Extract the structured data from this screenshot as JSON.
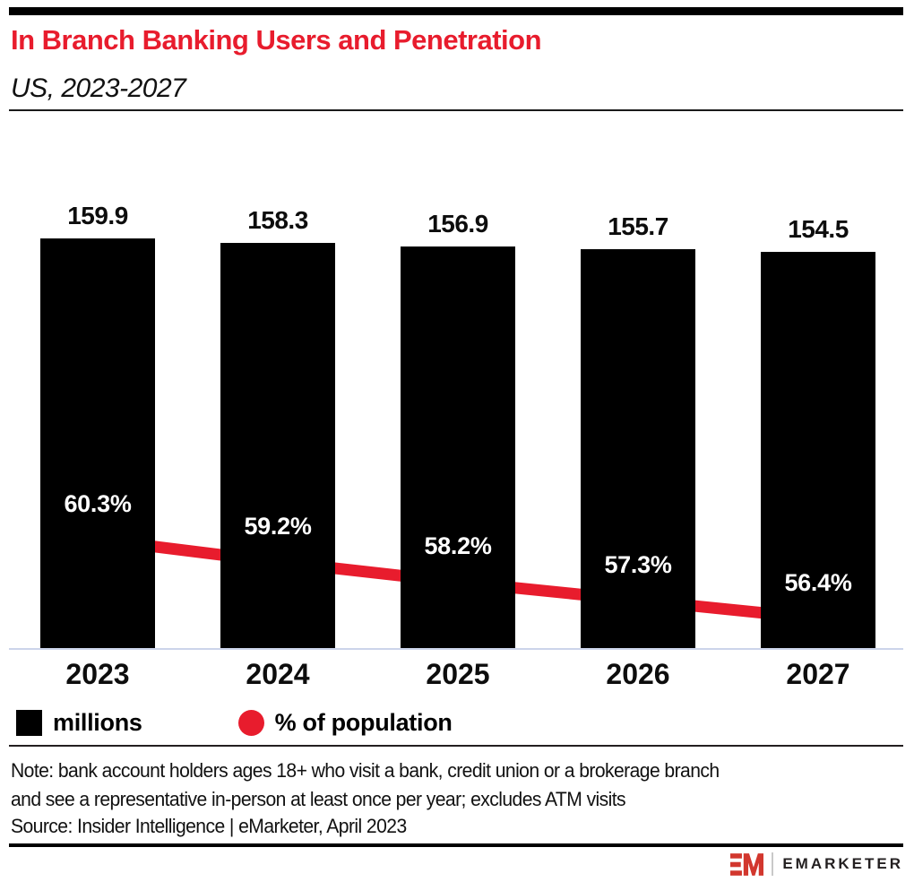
{
  "chart_data": {
    "type": "bar",
    "title": "In Branch Banking Users and Penetration",
    "subtitle": "US, 2023-2027",
    "categories": [
      "2023",
      "2024",
      "2025",
      "2026",
      "2027"
    ],
    "series": [
      {
        "name": "millions",
        "type": "bar",
        "color": "#000000",
        "values": [
          159.9,
          158.3,
          156.9,
          155.7,
          154.5
        ],
        "data_labels": [
          "159.9",
          "158.3",
          "156.9",
          "155.7",
          "154.5"
        ]
      },
      {
        "name": "% of population",
        "type": "line",
        "color": "#e81c2d",
        "values": [
          60.3,
          59.2,
          58.2,
          57.3,
          56.4
        ],
        "data_labels": [
          "60.3%",
          "59.2%",
          "58.2%",
          "57.3%",
          "56.4%"
        ]
      }
    ],
    "bar_axis_min": 0,
    "grid": false,
    "legend_position": "bottom"
  },
  "notes": {
    "note_line1": "Note: bank account holders ages 18+ who visit a bank, credit union or a brokerage branch",
    "note_line2": "and see a representative in-person at least once per year; excludes ATM visits",
    "source": "Source: Insider Intelligence | eMarketer, April 2023"
  },
  "footer": {
    "logo_monogram": "EM",
    "logo_text": "EMARKETER"
  },
  "colors": {
    "accent_red": "#e81c2d",
    "bar_black": "#000000",
    "axis_line": "#ccd4ea",
    "logo_red": "#d2372e",
    "logo_text_color": "#231f20"
  }
}
